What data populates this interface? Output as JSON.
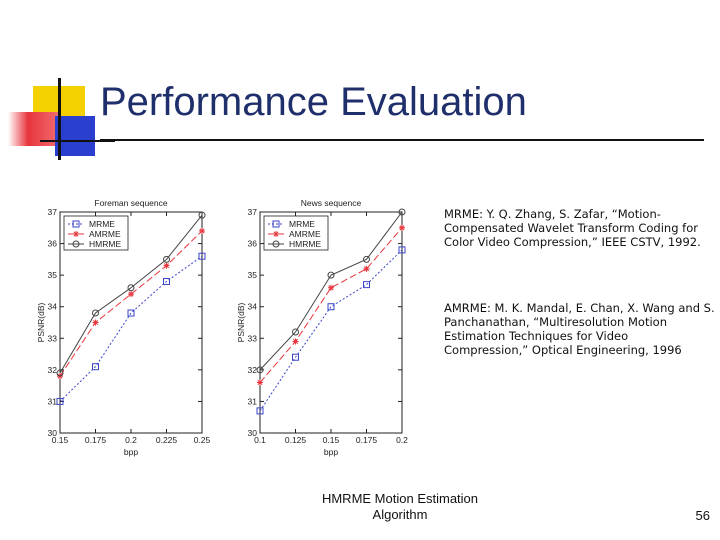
{
  "slide": {
    "title": "Performance Evaluation",
    "references": [
      "MRME: Y. Q. Zhang, S. Zafar, “Motion-Compensated Wavelet Transform Coding for Color Video Compression,” IEEE CSTV, 1992.",
      "AMRME: M. K. Mandal, E. Chan, X. Wang and S. Panchanathan, “Multiresolution Motion Estimation Techniques for Video Compression,” Optical Engineering, 1996"
    ],
    "footer": "HMRME Motion Estimation Algorithm",
    "page_number": "56",
    "accent_colors": {
      "title": "#1f2f6b",
      "yellow": "#f5d000",
      "red": "#e8343c",
      "blue": "#2b3fcf"
    }
  },
  "chart_data": [
    {
      "type": "line",
      "title": "Foreman sequence",
      "xlabel": "bpp",
      "ylabel": "PSNR(dB)",
      "x": [
        0.15,
        0.175,
        0.2,
        0.225,
        0.25
      ],
      "x_tick_labels": [
        "0.15",
        "0.175",
        "0.2",
        "0.225",
        "0.25"
      ],
      "y_ticks": [
        30,
        31,
        32,
        33,
        34,
        35,
        36,
        37
      ],
      "xlim": [
        0.15,
        0.25
      ],
      "ylim": [
        30,
        37
      ],
      "legend_position": "top-left",
      "series": [
        {
          "name": "MRME",
          "values": [
            31.0,
            32.1,
            33.8,
            34.8,
            35.6
          ],
          "color": "#3a45c8",
          "dash": "dotted",
          "marker": "square"
        },
        {
          "name": "AMRME",
          "values": [
            31.8,
            33.5,
            34.4,
            35.3,
            36.4
          ],
          "color": "#e8343c",
          "dash": "dashed",
          "marker": "star"
        },
        {
          "name": "HMRME",
          "values": [
            31.9,
            33.8,
            34.6,
            35.5,
            36.9
          ],
          "color": "#444444",
          "dash": "solid",
          "marker": "circle"
        }
      ]
    },
    {
      "type": "line",
      "title": "News sequence",
      "xlabel": "bpp",
      "ylabel": "PSNR(dB)",
      "x": [
        0.1,
        0.125,
        0.15,
        0.175,
        0.2
      ],
      "x_tick_labels": [
        "0.1",
        "0.125",
        "0.15",
        "0.175",
        "0.2"
      ],
      "y_ticks": [
        30,
        31,
        32,
        33,
        34,
        35,
        36,
        37
      ],
      "xlim": [
        0.1,
        0.2
      ],
      "ylim": [
        30,
        37
      ],
      "legend_position": "top-left",
      "series": [
        {
          "name": "MRME",
          "values": [
            30.7,
            32.4,
            34.0,
            34.7,
            35.8
          ],
          "color": "#3a45c8",
          "dash": "dotted",
          "marker": "square"
        },
        {
          "name": "AMRME",
          "values": [
            31.6,
            32.9,
            34.6,
            35.2,
            36.5
          ],
          "color": "#e8343c",
          "dash": "dashed",
          "marker": "star"
        },
        {
          "name": "HMRME",
          "values": [
            32.0,
            33.2,
            35.0,
            35.5,
            37.0
          ],
          "color": "#444444",
          "dash": "solid",
          "marker": "circle"
        }
      ]
    }
  ]
}
